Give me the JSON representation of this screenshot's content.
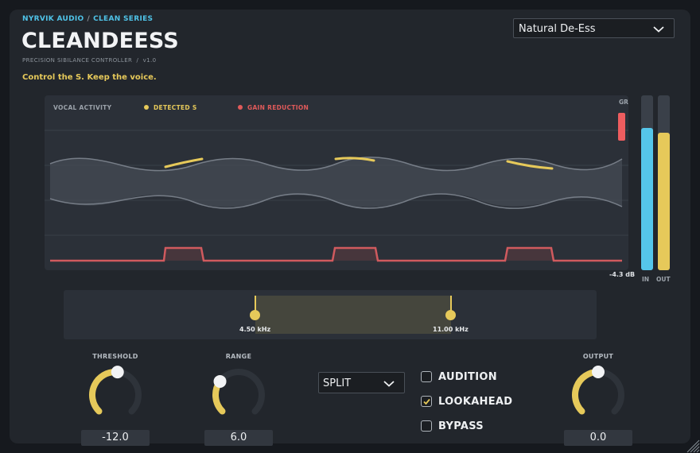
{
  "header": {
    "brand": "NYRVIK AUDIO",
    "series": "CLEAN SERIES",
    "separator": "/",
    "title": "CLEANDEESS",
    "subtitle": "PRECISION SIBILANCE CONTROLLER  /  v1.0",
    "tagline": "Control the S. Keep the voice."
  },
  "preset": {
    "selected": "Natural De-Ess"
  },
  "display": {
    "legend_activity": "VOCAL ACTIVITY",
    "legend_detected": "DETECTED S",
    "legend_gr": "GAIN REDUCTION",
    "gr_label": "GR",
    "gr_value": "-4.3 dB",
    "gr_meter_level": 0.18
  },
  "meters": {
    "in_label": "IN",
    "out_label": "OUT",
    "in_level": 0.86,
    "out_level": 0.83
  },
  "band": {
    "low_label": "4.50 kHz",
    "high_label": "11.00 kHz"
  },
  "controls": {
    "threshold": {
      "label": "THRESHOLD",
      "value": "-12.0",
      "level": 0.52
    },
    "range": {
      "label": "RANGE",
      "value": "6.0",
      "level": 0.3
    },
    "output": {
      "label": "OUTPUT",
      "value": "0.0",
      "level": 0.5
    },
    "mode": {
      "selected": "SPLIT"
    },
    "audition": {
      "label": "AUDITION",
      "checked": false
    },
    "lookahead": {
      "label": "LOOKAHEAD",
      "checked": true
    },
    "bypass": {
      "label": "BYPASS",
      "checked": false
    }
  },
  "colors": {
    "accent_blue": "#4fc3e8",
    "accent_yellow": "#e6c95a",
    "gr_red": "#e05a5a"
  }
}
